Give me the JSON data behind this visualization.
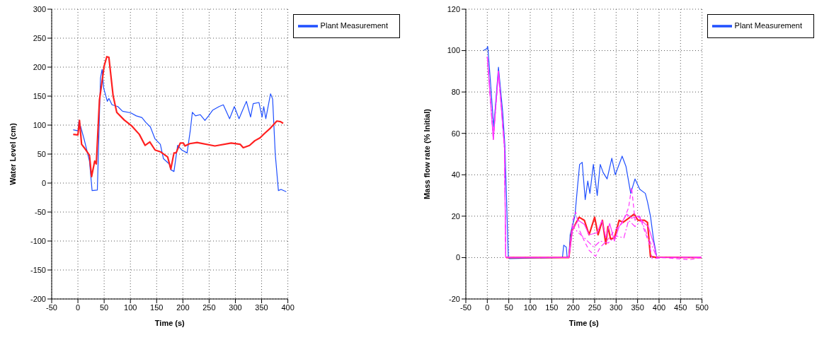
{
  "chart_data": [
    {
      "type": "line",
      "xlabel": "Time (s)",
      "ylabel": "Water Level (cm)",
      "xlim": [
        -50,
        400
      ],
      "xticks": [
        -50,
        0,
        50,
        100,
        150,
        200,
        250,
        300,
        350,
        400
      ],
      "ylim": [
        -200,
        300
      ],
      "yticks": [
        -200,
        -150,
        -100,
        -50,
        0,
        50,
        100,
        150,
        200,
        250,
        300
      ],
      "grid": true,
      "legend": "top right",
      "line_style": "solid",
      "series": [
        {
          "name": "Plant Measurement",
          "color": "#1f4fff",
          "x": [
            -9,
            0,
            2,
            12,
            22,
            27,
            37,
            43,
            46,
            49,
            56,
            59,
            65,
            76,
            85,
            101,
            111,
            122,
            129,
            138,
            147,
            157,
            163,
            174,
            177,
            183,
            190,
            198,
            208,
            214,
            218,
            224,
            233,
            242,
            249,
            257,
            269,
            277,
            289,
            298,
            307,
            313,
            321,
            329,
            334,
            345,
            351,
            354,
            358,
            367,
            371,
            376,
            382,
            387,
            397
          ],
          "values": [
            92,
            90,
            108,
            75,
            38,
            -13,
            -12,
            181,
            196,
            164,
            141,
            146,
            135,
            132,
            124,
            121,
            116,
            113,
            105,
            97,
            76,
            67,
            42,
            33,
            23,
            20,
            65,
            57,
            52,
            90,
            122,
            116,
            118,
            108,
            116,
            126,
            132,
            135,
            111,
            132,
            111,
            124,
            141,
            114,
            137,
            139,
            114,
            132,
            111,
            154,
            145,
            50,
            -13,
            -11,
            -15
          ]
        },
        {
          "color": "#ff2020",
          "x": [
            -9,
            0,
            3,
            7,
            12,
            22,
            26,
            32,
            35,
            41,
            50,
            55,
            59,
            67,
            74,
            88,
            102,
            117,
            128,
            137,
            147,
            157,
            171,
            177,
            183,
            187,
            195,
            201,
            204,
            213,
            227,
            261,
            292,
            309,
            315,
            327,
            337,
            347,
            356,
            367,
            379,
            386,
            391
          ],
          "values": [
            84,
            83,
            108,
            67,
            61,
            48,
            11,
            38,
            33,
            143,
            202,
            218,
            217,
            151,
            122,
            109,
            99,
            84,
            65,
            71,
            57,
            54,
            45,
            24,
            52,
            52,
            69,
            69,
            64,
            68,
            70,
            64,
            69,
            67,
            61,
            65,
            73,
            78,
            86,
            95,
            107,
            106,
            103
          ]
        }
      ]
    },
    {
      "type": "line",
      "xlabel": "Time (s)",
      "ylabel": "Mass flow rate (% Initial)",
      "xlim": [
        -50,
        500
      ],
      "xticks": [
        -50,
        0,
        50,
        100,
        150,
        200,
        250,
        300,
        350,
        400,
        450,
        500
      ],
      "ylim": [
        -20,
        120
      ],
      "yticks": [
        -20,
        0,
        20,
        40,
        60,
        80,
        100,
        120
      ],
      "grid": true,
      "legend": "top right",
      "series": [
        {
          "name": "Plant Measurement",
          "color": "#1f4fff",
          "line_style": "solid",
          "x": [
            -9,
            -1,
            1,
            7,
            15,
            26,
            36,
            41,
            49,
            51,
            175,
            178,
            184,
            186,
            190,
            193,
            204,
            210,
            215,
            221,
            228,
            234,
            239,
            247,
            256,
            263,
            270,
            279,
            290,
            298,
            314,
            323,
            334,
            344,
            355,
            368,
            373,
            380,
            387,
            395,
            499
          ],
          "values": [
            100,
            101,
            102,
            86,
            63,
            92,
            70,
            54,
            0,
            -0.5,
            0,
            6,
            5,
            0,
            0,
            11,
            20,
            34,
            45,
            46,
            28,
            37,
            31,
            45,
            30,
            45,
            41,
            38,
            48,
            40,
            49,
            44,
            31,
            38,
            33,
            31,
            27,
            20,
            9,
            0,
            0
          ]
        },
        {
          "color": "#ff2020",
          "line_style": "solid",
          "x": [
            44,
            190,
            197,
            214,
            226,
            237,
            250,
            258,
            268,
            276,
            281,
            287,
            296,
            307,
            316,
            329,
            342,
            351,
            366,
            373,
            380,
            391,
            499
          ],
          "values": [
            0,
            0,
            13,
            19.5,
            18,
            11,
            19.5,
            11,
            18,
            6.5,
            15,
            9,
            9.5,
            18,
            17,
            19,
            21,
            18,
            18,
            17,
            0.5,
            0.2,
            0
          ]
        },
        {
          "color": "#ff33ff",
          "line_style": "solid",
          "x": [
            0,
            14,
            26,
            40,
            43,
            190,
            199,
            212,
            226,
            237,
            256,
            267,
            276,
            285,
            296,
            307,
            325,
            336,
            351,
            366,
            375,
            387,
            395,
            499
          ],
          "values": [
            97,
            57,
            90,
            53,
            0,
            0,
            14,
            18,
            16,
            11,
            12,
            18,
            9.5,
            16.5,
            8,
            15,
            21,
            19,
            20,
            16.5,
            15,
            7,
            0,
            0.2
          ]
        },
        {
          "color": "#ff33ff",
          "line_style": "dashed",
          "x": [
            0,
            14,
            26,
            40,
            43,
            190,
            199,
            206,
            215,
            226,
            237,
            252,
            263,
            278,
            296,
            314,
            329,
            336,
            344,
            355,
            366,
            377,
            384,
            410,
            472,
            499
          ],
          "values": [
            97,
            57,
            90,
            53,
            0,
            0,
            18,
            22,
            13,
            8,
            3.5,
            0.6,
            5,
            8,
            13,
            16.5,
            24,
            34,
            18,
            20,
            13,
            7,
            -0.6,
            0,
            -1,
            0
          ]
        },
        {
          "color": "#ff33ff",
          "line_style": "dashdot",
          "x": [
            0,
            12,
            14,
            26,
            40,
            43,
            190,
            199,
            212,
            226,
            248,
            263,
            281,
            300,
            318,
            329,
            344,
            359,
            373,
            388,
            395,
            499
          ],
          "values": [
            97,
            65,
            57,
            90,
            53,
            0,
            0,
            15,
            12,
            9.5,
            5,
            8,
            7,
            10.5,
            9.5,
            18,
            15,
            18,
            10.5,
            3.5,
            0,
            0
          ]
        }
      ]
    }
  ]
}
